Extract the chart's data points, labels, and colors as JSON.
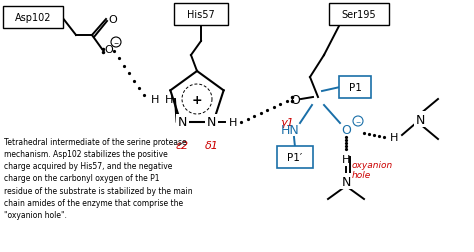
{
  "figsize": [
    4.74,
    2.53
  ],
  "dpi": 100,
  "bg_color": "white",
  "label_asp102": "Asp102",
  "label_his57": "His57",
  "label_ser195": "Ser195",
  "label_epsilon2": "ε2",
  "label_delta1": "δ1",
  "label_gamma1": "γ1",
  "label_p1": "P1",
  "label_p1prime": "P1′",
  "label_oxyanion_1": "oxyanion",
  "label_oxyanion_2": "hole",
  "description": "Tetrahedral intermediate of the serine protease\nmechanism. Asp102 stabilizes the positive\ncharge acquired by His57, and the negative\ncharge on the carbonyl oxygen of the P1\nresidue of the substrate is stabilized by the main\nchain amides of the enzyme that comprise the\n\"oxyanion hole\".",
  "black": "#000000",
  "red": "#cc0000",
  "blue": "#1a6fa8"
}
